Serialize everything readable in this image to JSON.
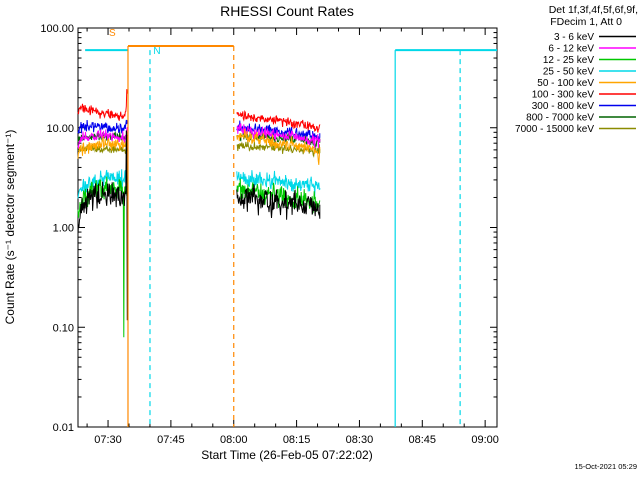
{
  "timestamp": "15-Oct-2021 05:29",
  "legend": {
    "header_line1": "Det 1f,3f,4f,5f,6f,9f,",
    "header_line2": "FDecim 1, Att 0",
    "entries": [
      {
        "label": "3 - 6 keV",
        "color": "#000000"
      },
      {
        "label": "6 - 12 keV",
        "color": "#FF00FF"
      },
      {
        "label": "12 - 25 keV",
        "color": "#00C800"
      },
      {
        "label": "25 - 50 keV",
        "color": "#00D8E8"
      },
      {
        "label": "50 - 100 keV",
        "color": "#FFA500"
      },
      {
        "label": "100 - 300 keV",
        "color": "#FF0000"
      },
      {
        "label": "300 - 800 keV",
        "color": "#0000EE"
      },
      {
        "label": "800 - 7000 keV",
        "color": "#006400"
      },
      {
        "label": "7000 - 15000 keV",
        "color": "#8B8B00"
      }
    ]
  },
  "chart_data": {
    "type": "line",
    "title": "RHESSI Count Rates",
    "xlabel": "Start Time (26-Feb-05 07:22:02)",
    "ylabel": "Count Rate (s⁻¹ detector segment⁻¹)",
    "x_axis": {
      "t_range_minutes": [
        0.8,
        100.8
      ],
      "ticks": [
        {
          "t": 7.97,
          "label": "07:30"
        },
        {
          "t": 22.97,
          "label": "07:45"
        },
        {
          "t": 37.97,
          "label": "08:00"
        },
        {
          "t": 52.97,
          "label": "08:15"
        },
        {
          "t": 67.97,
          "label": "08:30"
        },
        {
          "t": 82.97,
          "label": "08:45"
        },
        {
          "t": 97.97,
          "label": "09:00"
        }
      ],
      "minor_step_minutes": 5
    },
    "y_axis": {
      "range": [
        0.01,
        100
      ],
      "log": true,
      "ticks": [
        {
          "v": 100,
          "label": "100.00"
        },
        {
          "v": 10,
          "label": "10.00"
        },
        {
          "v": 1,
          "label": "1.00"
        },
        {
          "v": 0.1,
          "label": "0.10"
        },
        {
          "v": 0.01,
          "label": "0.01"
        }
      ]
    },
    "series": [
      {
        "label": "800 - 7000 keV",
        "color": "#006400",
        "noise": 0.05,
        "segments": [
          [
            [
              0.8,
              7.5
            ],
            [
              3,
              8.3
            ],
            [
              8,
              8.2
            ],
            [
              12.6,
              8.0
            ]
          ],
          [
            [
              38.7,
              8.3
            ],
            [
              50,
              7.8
            ],
            [
              58.5,
              7.4
            ]
          ]
        ]
      },
      {
        "label": "7000 - 15000 keV",
        "color": "#8B8B00",
        "noise": 0.05,
        "segments": [
          [
            [
              0.8,
              6.0
            ],
            [
              3,
              6.3
            ],
            [
              8,
              6.2
            ],
            [
              12.6,
              6.0
            ]
          ],
          [
            [
              38.7,
              6.6
            ],
            [
              50,
              6.2
            ],
            [
              58.5,
              5.9
            ]
          ]
        ]
      },
      {
        "label": "300 - 800 keV",
        "color": "#0000EE",
        "noise": 0.06,
        "segments": [
          [
            [
              0.8,
              9.0
            ],
            [
              2,
              10.5
            ],
            [
              5,
              10.3
            ],
            [
              9,
              9.8
            ],
            [
              12.0,
              9.5
            ],
            [
              12.5,
              13
            ],
            [
              12.6,
              11
            ]
          ],
          [
            [
              38.7,
              10.3
            ],
            [
              43,
              9.6
            ],
            [
              50,
              9.0
            ],
            [
              55,
              8.6
            ],
            [
              58.5,
              8.2
            ]
          ]
        ]
      },
      {
        "label": "6 - 12 keV",
        "color": "#FF00FF",
        "noise": 0.07,
        "segments": [
          [
            [
              0.8,
              6.5
            ],
            [
              2,
              7.8
            ],
            [
              5,
              8.3
            ],
            [
              9,
              8.2
            ],
            [
              12.0,
              8.0
            ],
            [
              12.5,
              9.5
            ],
            [
              12.6,
              8.8
            ]
          ],
          [
            [
              38.7,
              9.8
            ],
            [
              43,
              9.0
            ],
            [
              50,
              8.3
            ],
            [
              55,
              7.8
            ],
            [
              58.5,
              7.3
            ]
          ]
        ]
      },
      {
        "label": "50 - 100 keV",
        "color": "#FFA500",
        "noise": 0.07,
        "segments": [
          [
            [
              0.8,
              5.5
            ],
            [
              2,
              6.3
            ],
            [
              4,
              6.8
            ],
            [
              8,
              7.0
            ],
            [
              12.0,
              6.6
            ],
            [
              12.6,
              7.5
            ]
          ],
          [
            [
              38.7,
              8.5
            ],
            [
              43,
              7.8
            ],
            [
              50,
              7.0
            ],
            [
              55,
              6.5
            ],
            [
              57.8,
              6.2
            ],
            [
              58.2,
              4.2
            ],
            [
              58.5,
              5.8
            ]
          ]
        ]
      },
      {
        "label": "25 - 50 keV",
        "color": "#00D8E8",
        "noise": 0.1,
        "segments": [
          [
            [
              0.8,
              1.9
            ],
            [
              2,
              2.6
            ],
            [
              4,
              3.0
            ],
            [
              8,
              3.2
            ],
            [
              12.6,
              3.1
            ]
          ],
          [
            [
              38.7,
              3.3
            ],
            [
              44,
              3.0
            ],
            [
              50,
              2.8
            ],
            [
              55,
              2.65
            ],
            [
              58.5,
              2.5
            ]
          ]
        ]
      },
      {
        "label": "12 - 25 keV",
        "color": "#00C800",
        "noise": 0.12,
        "segments": [
          [
            [
              0.8,
              1.3
            ],
            [
              2,
              1.9
            ],
            [
              4,
              2.3
            ],
            [
              8,
              2.5
            ],
            [
              11.6,
              2.4
            ],
            [
              11.7,
              0.05
            ],
            [
              11.85,
              2.4
            ],
            [
              12.6,
              2.5
            ]
          ],
          [
            [
              38.7,
              2.4
            ],
            [
              44,
              2.2
            ],
            [
              50,
              2.0
            ],
            [
              55,
              1.85
            ],
            [
              58.5,
              1.7
            ]
          ]
        ]
      },
      {
        "label": "100 - 300 keV",
        "color": "#FF0000",
        "noise": 0.055,
        "segments": [
          [
            [
              0.8,
              14
            ],
            [
              1.5,
              16
            ],
            [
              3,
              15
            ],
            [
              6,
              14
            ],
            [
              9,
              13.5
            ],
            [
              11.8,
              13
            ],
            [
              12.3,
              15
            ],
            [
              12.5,
              27
            ],
            [
              12.6,
              22
            ]
          ],
          [
            [
              38.7,
              13.5
            ],
            [
              43,
              12.5
            ],
            [
              50,
              11.5
            ],
            [
              55,
              10.8
            ],
            [
              58.5,
              10.0
            ]
          ]
        ]
      },
      {
        "label": "3 - 6 keV",
        "color": "#000000",
        "noise": 0.14,
        "segments": [
          [
            [
              0.8,
              1.1
            ],
            [
              2,
              1.6
            ],
            [
              4,
              2.0
            ],
            [
              8,
              2.2
            ],
            [
              11.5,
              2.1
            ],
            [
              12.2,
              2.3
            ],
            [
              12.4,
              18
            ],
            [
              12.5,
              2.5
            ],
            [
              12.55,
              0.06
            ],
            [
              12.6,
              2.0
            ]
          ],
          [
            [
              38.7,
              2.1
            ],
            [
              44,
              1.9
            ],
            [
              50,
              1.75
            ],
            [
              55,
              1.65
            ],
            [
              58.5,
              1.5
            ]
          ]
        ]
      }
    ],
    "flag_bars": [
      {
        "t0": 2.5,
        "t1": 12.73,
        "v": 60,
        "color": "#00D8E8"
      },
      {
        "t0": 12.73,
        "t1": 37.97,
        "v": 66,
        "color": "#FF8800"
      },
      {
        "t0": 76.5,
        "t1": 100.8,
        "v": 60,
        "color": "#00D8E8"
      }
    ],
    "flag_lines": [
      {
        "t": 12.73,
        "v_top": 66,
        "color": "#FF8800",
        "style": "solid"
      },
      {
        "t": 17.98,
        "v_top": 60,
        "color": "#00D8E8",
        "style": "dashed"
      },
      {
        "t": 37.97,
        "v_top": 66,
        "color": "#FF8800",
        "style": "dashed"
      },
      {
        "t": 76.5,
        "v_top": 60,
        "color": "#00D8E8",
        "style": "solid"
      },
      {
        "t": 92.0,
        "v_top": 60,
        "color": "#00D8E8",
        "style": "dashed"
      }
    ],
    "flag_labels": [
      {
        "text": "S",
        "color": "#FF8800",
        "t": 8.2,
        "v": 83
      },
      {
        "text": "N",
        "color": "#00D8E8",
        "t": 18.8,
        "v": 55
      }
    ]
  }
}
